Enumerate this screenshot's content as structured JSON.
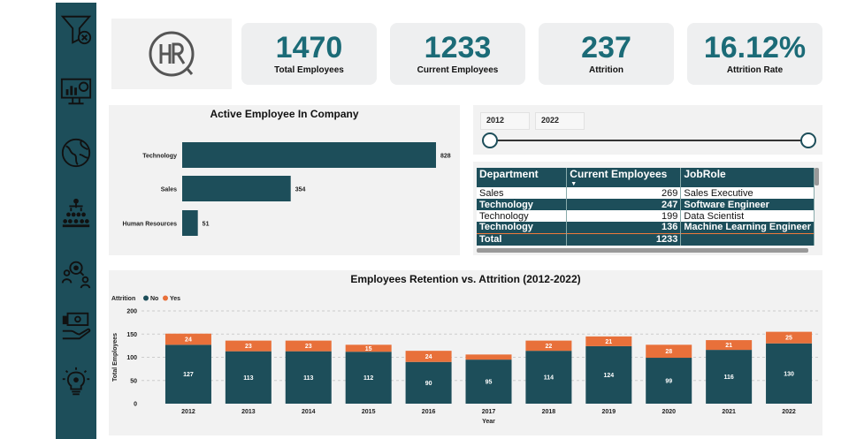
{
  "logo": {
    "text": "HR"
  },
  "kpis": [
    {
      "value": "1470",
      "label": "Total Employees"
    },
    {
      "value": "1233",
      "label": "Current Employees"
    },
    {
      "value": "237",
      "label": "Attrition"
    },
    {
      "value": "16.12%",
      "label": "Attrition Rate"
    }
  ],
  "sidebar": {
    "icons": [
      "filter-clear-icon",
      "dashboard-monitor-icon",
      "globe-icon",
      "organization-icon",
      "people-search-icon",
      "salary-hand-icon",
      "idea-bulb-icon"
    ]
  },
  "year_slicer": {
    "start": "2012",
    "end": "2022",
    "range": [
      2012,
      2022
    ]
  },
  "table": {
    "headers": [
      "Department",
      "Current Employees",
      "JobRole"
    ],
    "rows": [
      {
        "department": "Sales",
        "count": "269",
        "role": "Sales Executive"
      },
      {
        "department": "Technology",
        "count": "247",
        "role": "Software Engineer"
      },
      {
        "department": "Technology",
        "count": "199",
        "role": "Data Scientist"
      },
      {
        "department": "Technology",
        "count": "136",
        "role": "Machine Learning Engineer"
      }
    ],
    "total_label": "Total",
    "total_value": "1233"
  },
  "colors": {
    "primary": "#1d4e5a",
    "accent": "#e8703a",
    "kpi_text": "#1b6b77"
  },
  "chart_data": [
    {
      "type": "bar",
      "orientation": "horizontal",
      "title": "Active Employee In Company",
      "categories": [
        "Technology",
        "Sales",
        "Human Resources"
      ],
      "values": [
        828,
        354,
        51
      ],
      "color": "#1d4e5a"
    },
    {
      "type": "bar",
      "stacked": true,
      "title": "Employees Retention vs. Attrition (2012-2022)",
      "xlabel": "Year",
      "ylabel": "Total Employees",
      "legend_title": "Attrition",
      "legend_position": "top-left",
      "categories": [
        "2012",
        "2013",
        "2014",
        "2015",
        "2016",
        "2017",
        "2018",
        "2019",
        "2020",
        "2021",
        "2022"
      ],
      "series": [
        {
          "name": "No",
          "color": "#1d4e5a",
          "values": [
            127,
            113,
            113,
            112,
            90,
            95,
            114,
            124,
            99,
            116,
            130
          ]
        },
        {
          "name": "Yes",
          "color": "#e8703a",
          "values": [
            24,
            23,
            23,
            15,
            24,
            11,
            22,
            21,
            28,
            21,
            25
          ]
        }
      ],
      "ylim": [
        0,
        200
      ],
      "yticks": [
        0,
        50,
        100,
        150,
        200
      ],
      "grid": true
    }
  ]
}
